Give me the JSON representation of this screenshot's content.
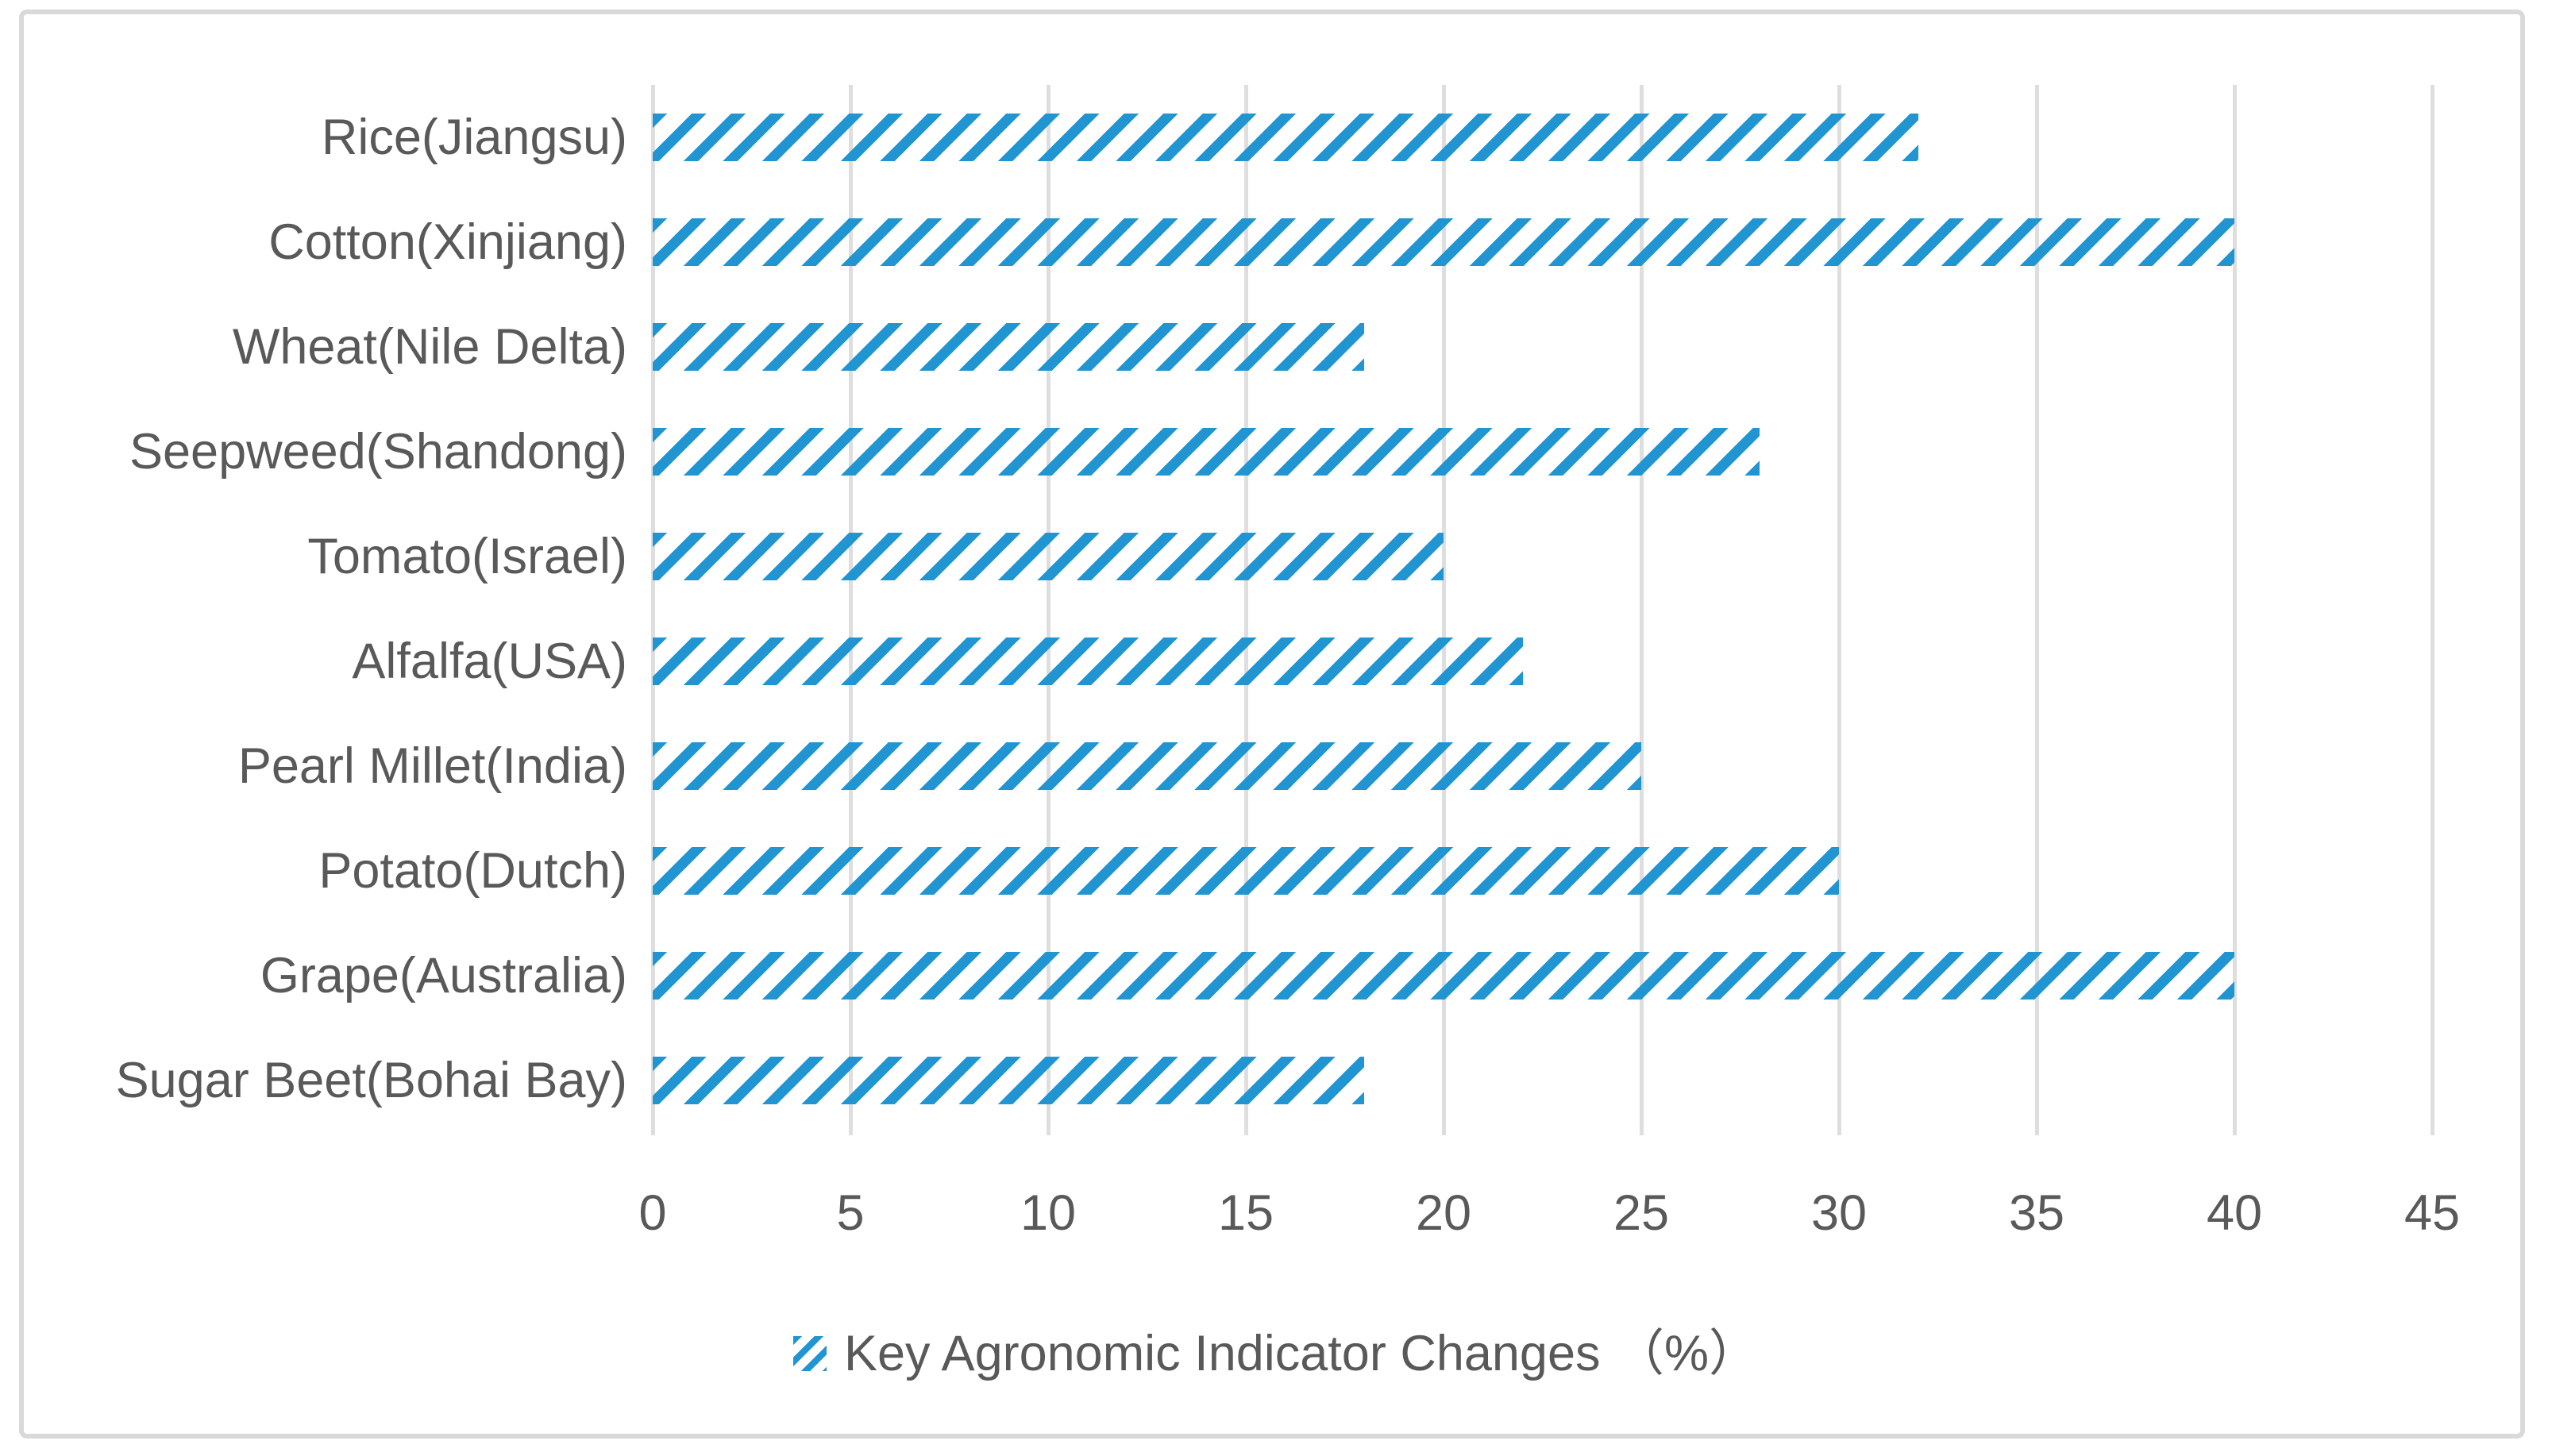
{
  "colors": {
    "bar_blue": "#2195d2",
    "gridline": "#dedede",
    "frame_border": "#d9d9d9",
    "text_gray": "#595959",
    "background": "#ffffff"
  },
  "legend": {
    "label": "Key Agronomic Indicator Changes （%）"
  },
  "chart_data": {
    "type": "bar",
    "orientation": "horizontal",
    "title": "",
    "xlabel": "",
    "ylabel": "",
    "categories": [
      "Rice(Jiangsu)",
      "Cotton(Xinjiang)",
      "Wheat(Nile Delta)",
      "Seepweed(Shandong)",
      "Tomato(Israel)",
      "Alfalfa(USA)",
      "Pearl Millet(India)",
      "Potato(Dutch)",
      "Grape(Australia)",
      "Sugar Beet(Bohai Bay)"
    ],
    "values": [
      32,
      40,
      18,
      28,
      20,
      22,
      25,
      30,
      40,
      18
    ],
    "series_name": "Key Agronomic Indicator Changes （%）",
    "xlim": [
      0,
      45
    ],
    "x_ticks": [
      0,
      5,
      10,
      15,
      20,
      25,
      30,
      35,
      40,
      45
    ],
    "grid": "vertical-gridlines-on",
    "legend_position": "bottom-center",
    "bar_style": "diagonal-hatch-forward-slash"
  }
}
